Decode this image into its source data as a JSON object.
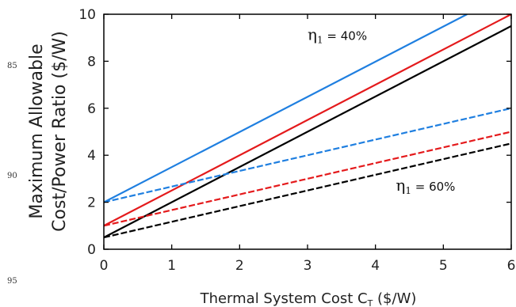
{
  "page": {
    "line_numbers": [
      "85",
      "90",
      "95"
    ]
  },
  "chart_data": {
    "type": "line",
    "xlabel": "Thermal System Cost C",
    "xlabel_sub": "T",
    "xlabel_unit": " ($/W)",
    "ylabel_line1": "Maximum Allowable",
    "ylabel_line2": "Cost/Power Ratio ($/W)",
    "xlim": [
      0,
      6
    ],
    "ylim": [
      0,
      10
    ],
    "xticks": [
      0,
      1,
      2,
      3,
      4,
      5,
      6
    ],
    "yticks": [
      0,
      2,
      4,
      6,
      8,
      10
    ],
    "annotations": [
      {
        "symbol": "η",
        "sub": "1",
        "text": " = 40%",
        "x": 3.0,
        "y": 8.9
      },
      {
        "symbol": "η",
        "sub": "1",
        "text": " = 60%",
        "x": 4.3,
        "y": 2.5
      }
    ],
    "series": [
      {
        "color": "#1f7fe0",
        "dash": false,
        "x": [
          0,
          5.35
        ],
        "y": [
          2.0,
          10.0
        ]
      },
      {
        "color": "#e41a1c",
        "dash": false,
        "x": [
          0,
          6
        ],
        "y": [
          1.0,
          10.0
        ]
      },
      {
        "color": "#000000",
        "dash": false,
        "x": [
          0,
          6
        ],
        "y": [
          0.5,
          9.5
        ]
      },
      {
        "color": "#1f7fe0",
        "dash": true,
        "x": [
          0,
          6
        ],
        "y": [
          2.0,
          6.0
        ]
      },
      {
        "color": "#e41a1c",
        "dash": true,
        "x": [
          0,
          6
        ],
        "y": [
          1.0,
          5.0
        ]
      },
      {
        "color": "#000000",
        "dash": true,
        "x": [
          0,
          6
        ],
        "y": [
          0.5,
          4.5
        ]
      }
    ]
  }
}
